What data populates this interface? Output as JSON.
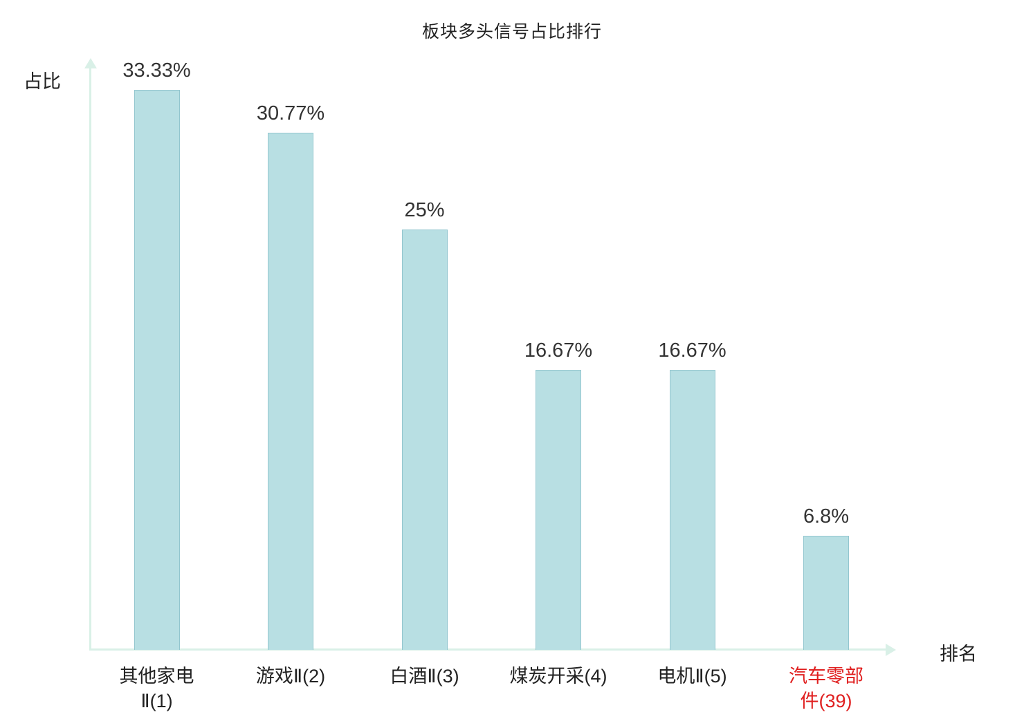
{
  "chart_data": {
    "type": "bar",
    "title": "板块多头信号占比排行",
    "xlabel": "排名",
    "ylabel": "占比",
    "categories": [
      "其他家电\nⅡ(1)",
      "游戏Ⅱ(2)",
      "白酒Ⅱ(3)",
      "煤炭开采(4)",
      "电机Ⅱ(5)",
      "汽车零部\n件(39)"
    ],
    "values": [
      33.33,
      30.77,
      25,
      16.67,
      16.67,
      6.8
    ],
    "value_labels": [
      "33.33%",
      "30.77%",
      "25%",
      "16.67%",
      "16.67%",
      "6.8%"
    ],
    "ylim": [
      0,
      34
    ],
    "grid": false,
    "legend": "none",
    "bar_color": "#b8dfe3",
    "bar_border_color": "#93c6cf",
    "axis_color": "#d9f0e7",
    "text_color": "#333333",
    "highlight_index": 5,
    "highlight_color": "#e01f1f"
  }
}
